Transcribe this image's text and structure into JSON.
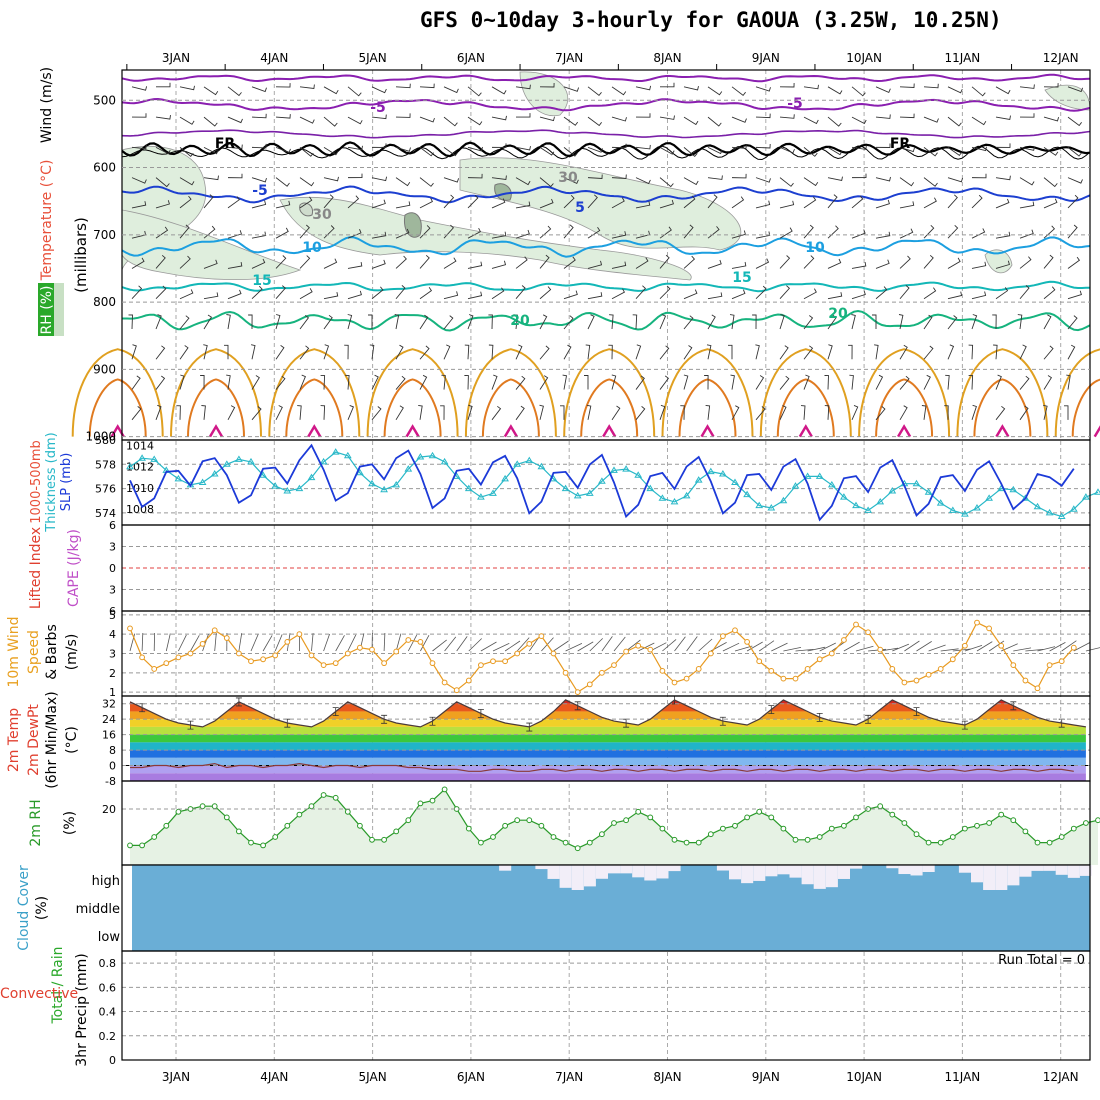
{
  "title": "GFS 0~10day 3-hourly for GAOUA (3.25W, 10.25N)",
  "dates": [
    "3JAN",
    "4JAN",
    "5JAN",
    "6JAN",
    "7JAN",
    "8JAN",
    "9JAN",
    "10JAN",
    "11JAN",
    "12JAN"
  ],
  "colors": {
    "purple": "#8a1fb0",
    "black": "#000000",
    "blue5": "#1c3fd0",
    "cyan10": "#1c9fe0",
    "teal15": "#13b7b7",
    "green20": "#16b37e",
    "orange": "#e0a020",
    "dkorange": "#e07a20",
    "magenta": "#d01888",
    "slp": "#1c3ad8",
    "thk": "#28b8c8",
    "wind10": "#e89a20",
    "rh": "#2a9a2a",
    "cloud": "#6aaed6",
    "rhfill": "#e6f2e4"
  },
  "panels": {
    "upper": {
      "ylabel_rh": "RH (%)",
      "ylabel_temp": "Temperature (°C)",
      "ylabel_wind": "Wind (m/s)",
      "ylabel_p": "(millibars)",
      "yticks": [
        "500",
        "600",
        "700",
        "800",
        "900",
        "1000"
      ],
      "contour_labels": [
        "-5",
        "-5",
        "FR",
        "FR",
        "-5",
        "5",
        "10",
        "10",
        "15",
        "15",
        "20",
        "20",
        "30",
        "30"
      ]
    },
    "slp": {
      "ylabel1": "1000-500mb",
      "ylabel2": "Thickness (dm)",
      "ylabel3": "SLP (mb)",
      "left_ticks": [
        "580",
        "578",
        "576",
        "574"
      ],
      "right_ticks": [
        "1014",
        "1012",
        "1010",
        "1008"
      ]
    },
    "cape": {
      "ylabel1": "Lifted Index",
      "ylabel2": "CAPE (J/kg)",
      "yticks": [
        "6",
        "3",
        "0",
        "3",
        "6"
      ]
    },
    "wind10": {
      "ylabel1": "10m Wind",
      "ylabel2": "Speed",
      "ylabel3": "& Barbs",
      "ylabel4": "(m/s)",
      "yticks": [
        "5",
        "4",
        "3",
        "2",
        "1"
      ]
    },
    "temp": {
      "ylabel1": "2m Temp",
      "ylabel2": "2m DewPt",
      "ylabel3": "(6hr Min/Max)",
      "ylabel4": "(°C)",
      "yticks": [
        "32",
        "24",
        "16",
        "8",
        "0",
        "-8"
      ]
    },
    "rh": {
      "ylabel1": "2m RH",
      "ylabel2": "(%)",
      "yticks": [
        "20"
      ]
    },
    "cloud": {
      "ylabel1": "Cloud Cover",
      "ylabel2": "(%)",
      "levels": [
        "high",
        "middle",
        "low"
      ]
    },
    "precip": {
      "ylabel1": "3hr Precip (mm)",
      "ylabel2": "Total / Rain",
      "ylabel3": "Convective",
      "yticks": [
        "0.8",
        "0.6",
        "0.4",
        "0.2",
        "0"
      ],
      "run_total": "Run Total = 0"
    }
  },
  "chart_data": [
    {
      "type": "line",
      "title": "1000-500mb Thickness (dm)",
      "x_unit": "3-hourly steps",
      "ylim": [
        573,
        580
      ],
      "series": [
        {
          "name": "Thickness",
          "values": [
            577.8,
            578.5,
            578.4,
            577.5,
            576.8,
            576.3,
            576.5,
            577.2,
            578.0,
            578.4,
            578.2,
            577.1,
            576.2,
            575.8,
            576.0,
            576.9,
            578.2,
            579.0,
            578.7,
            577.3,
            576.4,
            575.9,
            576.3,
            577.6,
            578.6,
            578.7,
            578.2,
            577.0,
            576.0,
            575.3,
            575.6,
            576.8,
            578.0,
            578.3,
            577.8,
            576.8,
            576.0,
            575.4,
            575.6,
            576.6,
            577.5,
            577.6,
            577.1,
            576.0,
            575.2,
            574.9,
            575.4,
            576.7,
            577.4,
            577.2,
            576.5,
            575.5,
            574.6,
            574.4,
            575.0,
            576.2,
            577.0,
            577.0,
            576.3,
            575.3,
            574.6,
            574.2,
            574.9,
            575.8,
            576.4,
            576.4,
            575.7,
            574.8,
            574.2,
            573.9,
            574.4,
            575.2,
            576.0,
            575.9,
            575.2,
            574.5,
            574.0,
            573.7,
            574.3,
            575.3,
            575.7
          ]
        }
      ]
    },
    {
      "type": "line",
      "title": "SLP (mb)",
      "ylim": [
        1006.5,
        1014.5
      ],
      "series": [
        {
          "name": "SLP",
          "values": [
            1010.7,
            1008.2,
            1009.0,
            1011.5,
            1011.6,
            1010.2,
            1012.5,
            1012.8,
            1011.2,
            1008.6,
            1009.3,
            1011.8,
            1011.9,
            1010.4,
            1012.6,
            1014.0,
            1011.7,
            1008.8,
            1009.5,
            1012.0,
            1012.2,
            1010.8,
            1012.8,
            1013.5,
            1011.3,
            1008.1,
            1009.0,
            1011.6,
            1011.8,
            1010.3,
            1012.4,
            1013.0,
            1010.9,
            1007.6,
            1008.7,
            1011.4,
            1011.5,
            1010.0,
            1012.2,
            1013.1,
            1010.5,
            1007.3,
            1008.4,
            1011.1,
            1011.4,
            1009.9,
            1012.0,
            1012.9,
            1010.6,
            1007.6,
            1008.6,
            1011.2,
            1011.3,
            1009.8,
            1012.0,
            1012.7,
            1010.4,
            1007.0,
            1008.3,
            1010.9,
            1011.1,
            1009.6,
            1011.9,
            1012.6,
            1010.2,
            1007.4,
            1008.5,
            1011.0,
            1011.2,
            1009.7,
            1011.7,
            1012.5,
            1010.4,
            1008.0,
            1009.0,
            1011.3,
            1011.0,
            1010.2,
            1011.8
          ]
        }
      ]
    },
    {
      "type": "line",
      "title": "10m Wind Speed (m/s)",
      "ylim": [
        0.8,
        5.2
      ],
      "series": [
        {
          "name": "Wind speed",
          "values": [
            4.3,
            2.8,
            2.2,
            2.5,
            2.8,
            3.0,
            3.5,
            4.2,
            3.8,
            3.0,
            2.6,
            2.7,
            2.9,
            3.6,
            4.0,
            2.9,
            2.4,
            2.5,
            3.0,
            3.3,
            3.2,
            2.5,
            3.1,
            3.7,
            3.6,
            2.5,
            1.5,
            1.1,
            1.6,
            2.4,
            2.6,
            2.6,
            3.0,
            3.5,
            3.9,
            3.0,
            2.0,
            1.0,
            1.4,
            2.0,
            2.4,
            3.1,
            3.4,
            3.2,
            2.1,
            1.5,
            1.7,
            2.2,
            3.0,
            3.9,
            4.2,
            3.6,
            2.6,
            2.1,
            1.7,
            1.7,
            2.2,
            2.7,
            3.0,
            3.7,
            4.5,
            4.1,
            3.2,
            2.2,
            1.5,
            1.6,
            1.9,
            2.2,
            2.7,
            3.4,
            4.6,
            4.3,
            3.4,
            2.4,
            1.6,
            1.2,
            2.4,
            2.6,
            3.3
          ]
        }
      ]
    },
    {
      "type": "line",
      "title": "2m Temp (°C)",
      "ylim": [
        -8,
        36
      ],
      "series": [
        {
          "name": "2m Temp",
          "values": [
            33,
            30,
            27,
            24,
            22,
            21,
            20,
            23,
            28,
            33,
            30,
            27,
            24,
            22,
            21,
            20,
            23,
            28,
            33,
            30,
            27,
            24,
            22,
            21,
            20,
            23,
            28,
            33,
            30,
            27,
            24,
            22,
            21,
            20,
            23,
            28,
            34,
            31,
            28,
            25,
            23,
            22,
            21,
            24,
            29,
            34,
            31,
            28,
            25,
            23,
            22,
            21,
            24,
            29,
            34,
            31,
            28,
            25,
            23,
            22,
            21,
            24,
            29,
            34,
            31,
            28,
            25,
            23,
            22,
            21,
            24,
            29,
            34,
            31,
            28,
            25,
            23,
            22,
            21,
            20
          ]
        },
        {
          "name": "2m DewPt",
          "values": [
            -1,
            -1,
            0,
            0,
            -1,
            0,
            0,
            1,
            -1,
            0,
            0,
            -1,
            0,
            0,
            1,
            0,
            -1,
            0,
            0,
            -1,
            0,
            0,
            0,
            -1,
            -1,
            -2,
            -2,
            -2,
            -3,
            -3,
            -2,
            -2,
            -3,
            -3,
            -2,
            -2,
            -3,
            -2,
            -2,
            -3,
            -2,
            -2,
            -3,
            -2,
            -2,
            -3,
            -2,
            -2,
            -3,
            -2,
            -2,
            -3,
            -2,
            -2,
            -3,
            -2,
            -2,
            -3,
            -2,
            -2,
            -3,
            -2,
            -2,
            -3,
            -2,
            -2,
            -3,
            -2,
            -2,
            -3,
            -2,
            -2,
            -3,
            -2,
            -2,
            -3,
            -2,
            -2,
            -3
          ]
        }
      ]
    },
    {
      "type": "area",
      "title": "2m RH (%)",
      "ylim": [
        0,
        30
      ],
      "series": [
        {
          "name": "2m RH",
          "values": [
            7,
            7,
            10,
            14,
            19,
            20,
            21,
            21,
            17,
            12,
            8,
            7,
            10,
            14,
            18,
            21,
            25,
            24,
            19,
            14,
            9,
            9,
            12,
            16,
            22,
            23,
            27,
            20,
            13,
            8,
            10,
            14,
            16,
            16,
            14,
            10,
            8,
            6,
            8,
            11,
            15,
            16,
            19,
            17,
            13,
            9,
            8,
            8,
            11,
            13,
            14,
            17,
            19,
            17,
            13,
            9,
            9,
            10,
            13,
            14,
            17,
            20,
            21,
            18,
            15,
            11,
            8,
            8,
            10,
            13,
            14,
            15,
            18,
            16,
            12,
            8,
            8,
            10,
            13,
            15,
            16
          ]
        }
      ]
    },
    {
      "type": "bar",
      "title": "Cloud Cover (%)",
      "categories": [
        "high",
        "middle",
        "low"
      ]
    },
    {
      "type": "bar",
      "title": "3hr Precip (mm)",
      "ylim": [
        0,
        0.9
      ],
      "series": [
        {
          "name": "Total / Rain",
          "values": []
        },
        {
          "name": "Convective",
          "values": []
        }
      ]
    }
  ]
}
